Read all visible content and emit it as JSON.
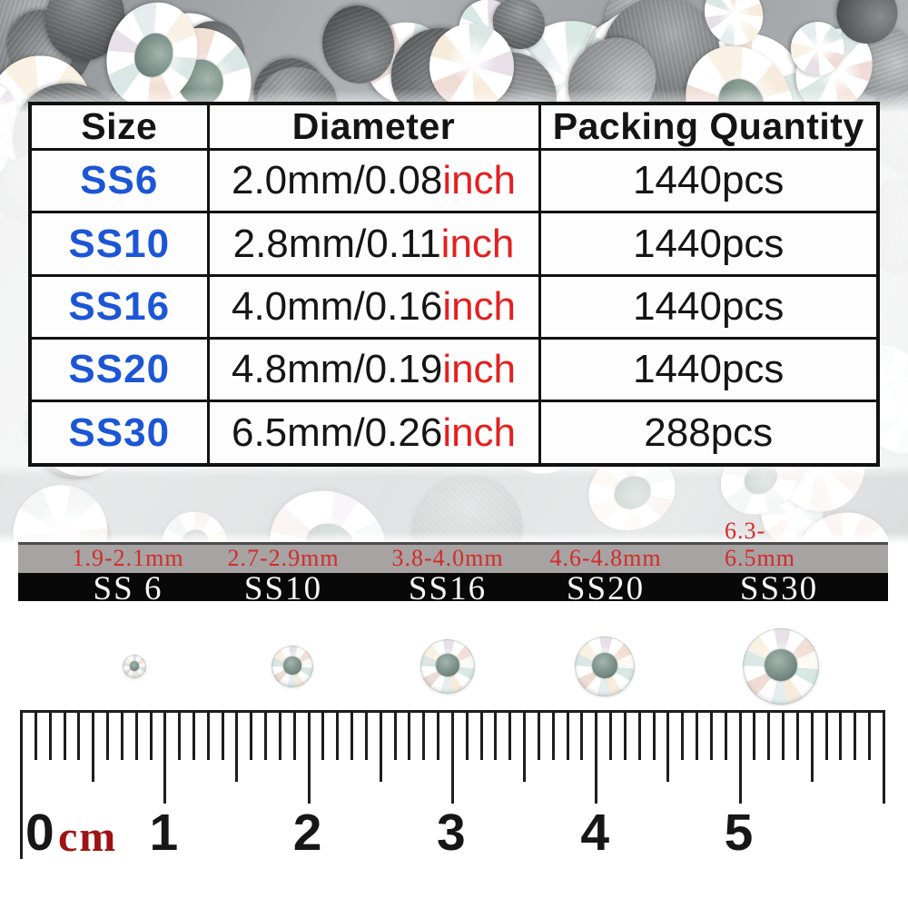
{
  "table": {
    "headers": [
      "Size",
      "Diameter",
      "Packing Quantity"
    ],
    "rows": [
      {
        "size": "SS6",
        "diameter": "2.0mm/0.08",
        "unit": "inch",
        "quantity": "1440pcs"
      },
      {
        "size": "SS10",
        "diameter": "2.8mm/0.11",
        "unit": "inch",
        "quantity": "1440pcs"
      },
      {
        "size": "SS16",
        "diameter": "4.0mm/0.16",
        "unit": "inch",
        "quantity": "1440pcs"
      },
      {
        "size": "SS20",
        "diameter": "4.8mm/0.19",
        "unit": "inch",
        "quantity": "1440pcs"
      },
      {
        "size": "SS30",
        "diameter": "6.5mm/0.26",
        "unit": "inch",
        "quantity": "288pcs"
      }
    ]
  },
  "size_chart": {
    "items": [
      {
        "range": "1.9-2.1mm",
        "label": "SS 6"
      },
      {
        "range": "2.7-2.9mm",
        "label": "SS10"
      },
      {
        "range": "3.8-4.0mm",
        "label": "SS16"
      },
      {
        "range": "4.6-4.8mm",
        "label": "SS20"
      },
      {
        "range": "6.3-6.5mm",
        "label": "SS30"
      }
    ]
  },
  "ruler": {
    "unit_label": "cm",
    "tick_numbers": [
      "0",
      "1",
      "2",
      "3",
      "4",
      "5"
    ]
  },
  "colors": {
    "size_blue": "#1c56d6",
    "inch_red": "#e32020",
    "range_red": "#d32b28",
    "ruler_unit_red": "#9e1313",
    "band_gray": "#a7a3a3",
    "band_black": "#080808"
  }
}
